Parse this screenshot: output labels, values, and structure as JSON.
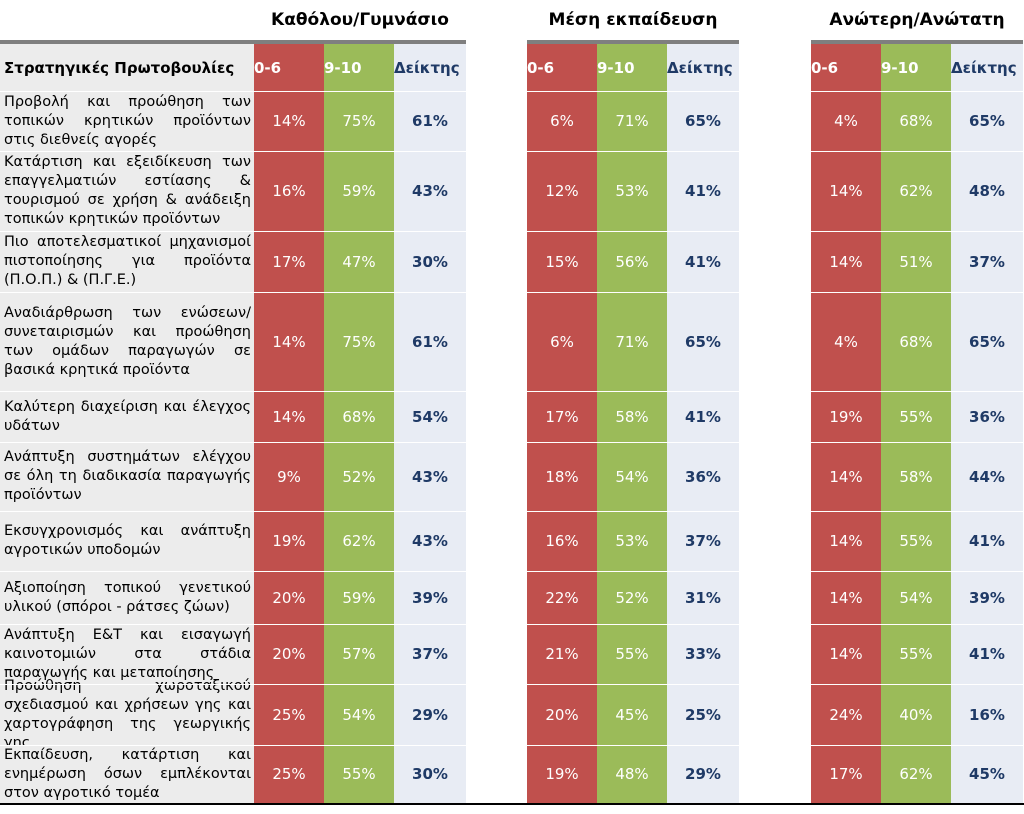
{
  "table": {
    "header_label": "Στρατηγικές Πρωτοβουλίες",
    "groups": [
      {
        "title": "Καθόλου/Γυμνάσιο",
        "columns": [
          "0-6",
          "9-10",
          "Δείκτης"
        ]
      },
      {
        "title": "Μέση εκπαίδευση",
        "columns": [
          "0-6",
          "9-10",
          "Δείκτης"
        ]
      },
      {
        "title": "Ανώτερη/Ανώτατη",
        "columns": [
          "0-6",
          "9-10",
          "Δείκτης"
        ]
      }
    ]
  },
  "colors": {
    "low": "#c0504d",
    "high": "#9bbb59",
    "index_bg": "#e8ecf4",
    "index_text": "#1f3a66",
    "label_bg": "#ececec"
  },
  "chart_data": {
    "type": "table",
    "row_header": "Στρατηγικές Πρωτοβουλίες",
    "column_groups": [
      "Καθόλου/Γυμνάσιο",
      "Μέση εκπαίδευση",
      "Ανώτερη/Ανώτατη"
    ],
    "sub_columns": [
      "0-6",
      "9-10",
      "Δείκτης"
    ],
    "rows": [
      {
        "label": "Προβολή και προώθηση των τοπικών κρητικών προϊόντων στις διεθνείς αγορές",
        "values": [
          [
            "14%",
            "75%",
            "61%"
          ],
          [
            "6%",
            "71%",
            "65%"
          ],
          [
            "4%",
            "68%",
            "65%"
          ]
        ]
      },
      {
        "label": "Κατάρτιση και εξειδίκευση των επαγγελματιών εστίασης & τουρισμού σε χρήση & ανάδειξη τοπικών κρητικών προϊόντων",
        "values": [
          [
            "16%",
            "59%",
            "43%"
          ],
          [
            "12%",
            "53%",
            "41%"
          ],
          [
            "14%",
            "62%",
            "48%"
          ]
        ]
      },
      {
        "label": "Πιο αποτελεσματικοί μηχανισμοί πιστοποίησης για προϊόντα (Π.Ο.Π.) & (Π.Γ.Ε.)",
        "values": [
          [
            "17%",
            "47%",
            "30%"
          ],
          [
            "15%",
            "56%",
            "41%"
          ],
          [
            "14%",
            "51%",
            "37%"
          ]
        ]
      },
      {
        "label": "Αναδιάρθρωση των ενώσεων/συνεταιρισμών και προώθηση των ομάδων παραγωγών σε βασικά κρητικά προϊόντα",
        "values": [
          [
            "14%",
            "75%",
            "61%"
          ],
          [
            "6%",
            "71%",
            "65%"
          ],
          [
            "4%",
            "68%",
            "65%"
          ]
        ]
      },
      {
        "label": "Καλύτερη διαχείριση και έλεγχος υδάτων",
        "values": [
          [
            "14%",
            "68%",
            "54%"
          ],
          [
            "17%",
            "58%",
            "41%"
          ],
          [
            "19%",
            "55%",
            "36%"
          ]
        ]
      },
      {
        "label": "Ανάπτυξη συστημάτων ελέγχου σε όλη τη διαδικασία παραγωγής προϊόντων",
        "values": [
          [
            "9%",
            "52%",
            "43%"
          ],
          [
            "18%",
            "54%",
            "36%"
          ],
          [
            "14%",
            "58%",
            "44%"
          ]
        ]
      },
      {
        "label": "Εκσυγχρονισμός και ανάπτυξη αγροτικών υποδομών",
        "values": [
          [
            "19%",
            "62%",
            "43%"
          ],
          [
            "16%",
            "53%",
            "37%"
          ],
          [
            "14%",
            "55%",
            "41%"
          ]
        ]
      },
      {
        "label": "Αξιοποίηση τοπικού γενετικού υλικού (σπόροι - ράτσες ζώων)",
        "values": [
          [
            "20%",
            "59%",
            "39%"
          ],
          [
            "22%",
            "52%",
            "31%"
          ],
          [
            "14%",
            "54%",
            "39%"
          ]
        ]
      },
      {
        "label": "Ανάπτυξη Ε&Τ και εισαγωγή καινοτομιών στα στάδια παραγωγής και μεταποίησης",
        "values": [
          [
            "20%",
            "57%",
            "37%"
          ],
          [
            "21%",
            "55%",
            "33%"
          ],
          [
            "14%",
            "55%",
            "41%"
          ]
        ]
      },
      {
        "label": "Προώθηση χωροταξικού σχεδιασμού και χρήσεων γης και χαρτογράφηση της γεωργικής γης",
        "values": [
          [
            "25%",
            "54%",
            "29%"
          ],
          [
            "20%",
            "45%",
            "25%"
          ],
          [
            "24%",
            "40%",
            "16%"
          ]
        ]
      },
      {
        "label": "Εκπαίδευση, κατάρτιση και ενημέρωση όσων εμπλέκονται στον αγροτικό τομέα",
        "values": [
          [
            "25%",
            "55%",
            "30%"
          ],
          [
            "19%",
            "48%",
            "29%"
          ],
          [
            "17%",
            "62%",
            "45%"
          ]
        ]
      }
    ]
  }
}
